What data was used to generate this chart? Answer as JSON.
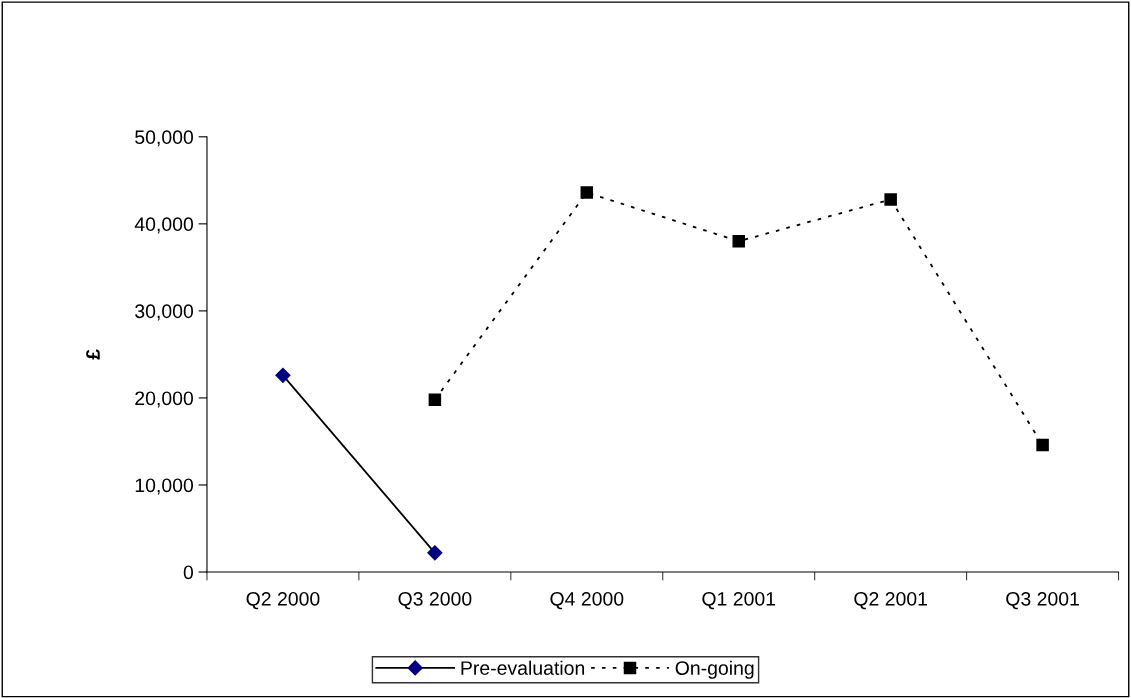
{
  "chart_data": {
    "type": "line",
    "ylabel": "£",
    "categories": [
      "Q2 2000",
      "Q3 2000",
      "Q4 2000",
      "Q1 2001",
      "Q2 2001",
      "Q3 2001"
    ],
    "series": [
      {
        "name": "Pre-evaluation",
        "color": "#000080",
        "marker": "diamond",
        "line_style": "solid",
        "values": [
          22600,
          2200,
          null,
          null,
          null,
          null
        ]
      },
      {
        "name": "On-going",
        "color": "#000000",
        "marker": "square",
        "line_style": "dotted",
        "values": [
          null,
          19800,
          43600,
          38000,
          42800,
          14600
        ]
      }
    ],
    "ylim": [
      0,
      50000
    ],
    "yticks": [
      {
        "value": 0,
        "label": "0"
      },
      {
        "value": 10000,
        "label": "10,000"
      },
      {
        "value": 20000,
        "label": "20,000"
      },
      {
        "value": 30000,
        "label": "30,000"
      },
      {
        "value": 40000,
        "label": "40,000"
      },
      {
        "value": 50000,
        "label": "50,000"
      }
    ],
    "grid": false,
    "legend": "bottom"
  }
}
